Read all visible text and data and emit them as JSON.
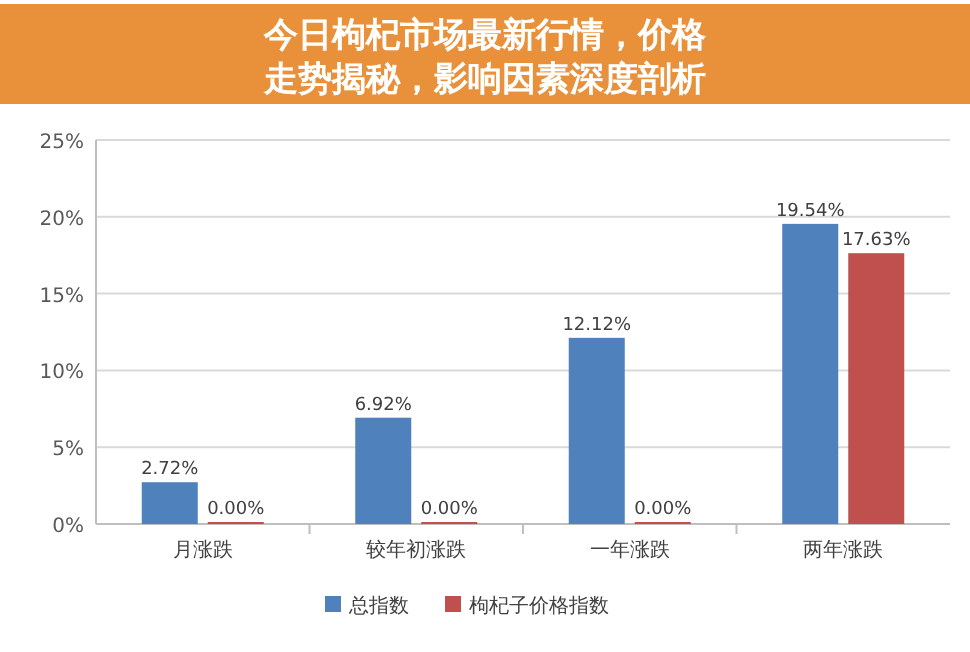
{
  "chart_data": {
    "type": "bar",
    "title": "今日枸杞市场最新行情，价格走势揭秘，影响因素深度剖析",
    "categories": [
      "月涨跌",
      "较年初涨跌",
      "一年涨跌",
      "两年涨跌"
    ],
    "series": [
      {
        "name": "总指数",
        "color": "#4f81bd",
        "values": [
          2.72,
          6.92,
          12.12,
          19.54
        ],
        "value_labels": [
          "2.72%",
          "6.92%",
          "12.12%",
          "19.54%"
        ]
      },
      {
        "name": "枸杞子价格指数",
        "color": "#c0504d",
        "values": [
          0,
          0,
          0,
          17.63
        ],
        "value_labels": [
          "0.00%",
          "0.00%",
          "0.00%",
          "17.63%"
        ]
      }
    ],
    "ylim": [
      0,
      25
    ],
    "yticks": [
      {
        "value": 0,
        "label": "0%"
      },
      {
        "value": 5,
        "label": "5%"
      },
      {
        "value": 10,
        "label": "10%"
      },
      {
        "value": 15,
        "label": "15%"
      },
      {
        "value": 20,
        "label": "20%"
      },
      {
        "value": 25,
        "label": "25%"
      }
    ],
    "grid": "y",
    "legend": "bottom"
  }
}
